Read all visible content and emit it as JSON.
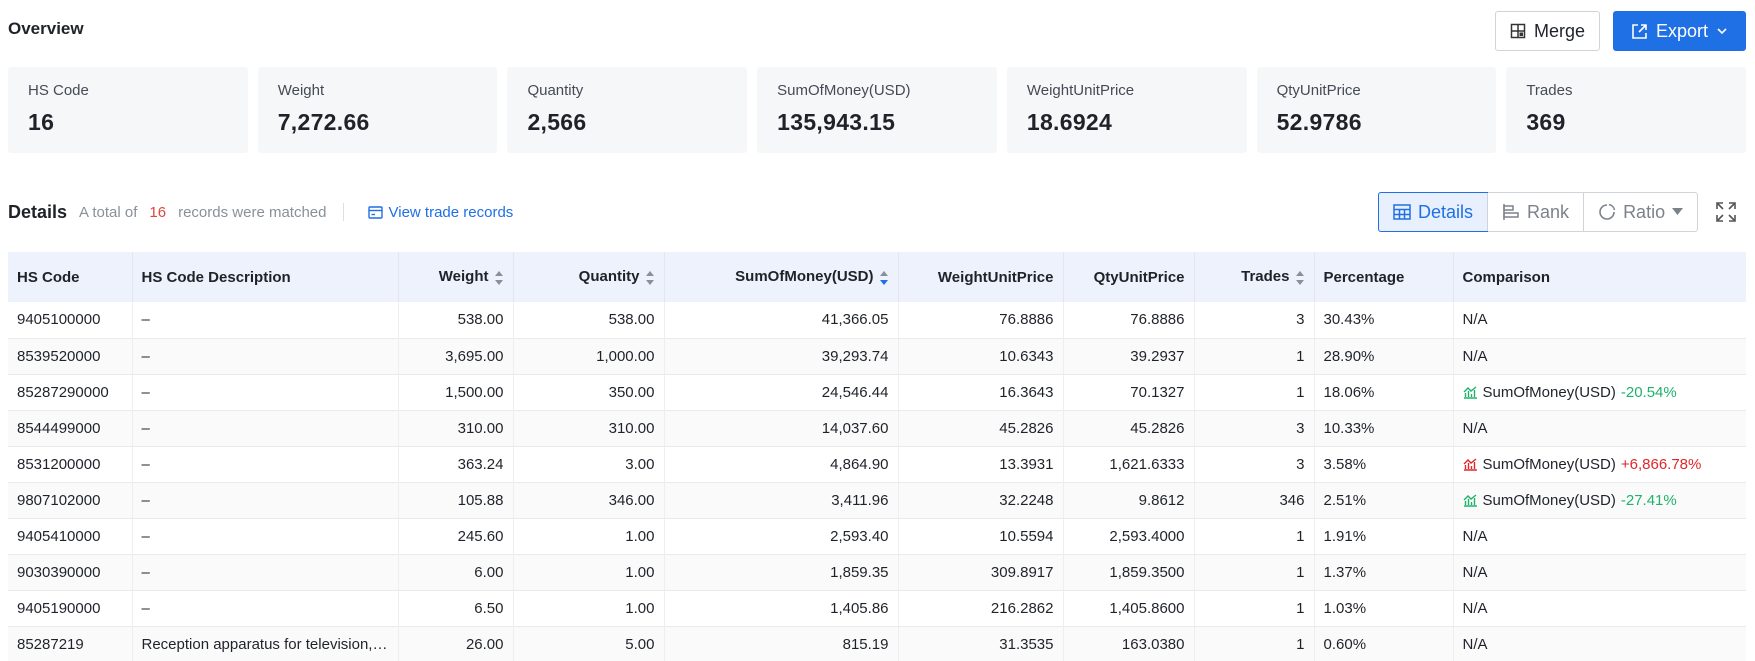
{
  "overview": {
    "title": "Overview"
  },
  "actions": {
    "merge_label": "Merge",
    "export_label": "Export"
  },
  "summary": [
    {
      "label": "HS Code",
      "value": "16"
    },
    {
      "label": "Weight",
      "value": "7,272.66"
    },
    {
      "label": "Quantity",
      "value": "2,566"
    },
    {
      "label": "SumOfMoney(USD)",
      "value": "135,943.15"
    },
    {
      "label": "WeightUnitPrice",
      "value": "18.6924"
    },
    {
      "label": "QtyUnitPrice",
      "value": "52.9786"
    },
    {
      "label": "Trades",
      "value": "369"
    }
  ],
  "details": {
    "title": "Details",
    "total_prefix": "A total of",
    "total_count": "16",
    "total_suffix": "records were matched",
    "view_link": "View trade records"
  },
  "views": {
    "details": "Details",
    "rank": "Rank",
    "ratio": "Ratio"
  },
  "colors": {
    "accent": "#1f6fe5",
    "down": "#20b26b",
    "up": "#e0262a"
  },
  "table": {
    "headers": {
      "hs_code": "HS Code",
      "description": "HS Code Description",
      "weight": "Weight",
      "quantity": "Quantity",
      "sum": "SumOfMoney(USD)",
      "weight_unit_price": "WeightUnitPrice",
      "qty_unit_price": "QtyUnitPrice",
      "trades": "Trades",
      "percentage": "Percentage",
      "comparison": "Comparison"
    },
    "rows": [
      {
        "hs": "9405100000",
        "desc": "–",
        "weight": "538.00",
        "qty": "538.00",
        "sum": "41,366.05",
        "wup": "76.8886",
        "qup": "76.8886",
        "trades": "3",
        "pct": "30.43%",
        "cmp": "N/A"
      },
      {
        "hs": "8539520000",
        "desc": "–",
        "weight": "3,695.00",
        "qty": "1,000.00",
        "sum": "39,293.74",
        "wup": "10.6343",
        "qup": "39.2937",
        "trades": "1",
        "pct": "28.90%",
        "cmp": "N/A"
      },
      {
        "hs": "85287290000",
        "desc": "–",
        "weight": "1,500.00",
        "qty": "350.00",
        "sum": "24,546.44",
        "wup": "16.3643",
        "qup": "70.1327",
        "trades": "1",
        "pct": "18.06%",
        "cmp_label": "SumOfMoney(USD)",
        "cmp_change": "-20.54%",
        "trend": "down"
      },
      {
        "hs": "8544499000",
        "desc": "–",
        "weight": "310.00",
        "qty": "310.00",
        "sum": "14,037.60",
        "wup": "45.2826",
        "qup": "45.2826",
        "trades": "3",
        "pct": "10.33%",
        "cmp": "N/A"
      },
      {
        "hs": "8531200000",
        "desc": "–",
        "weight": "363.24",
        "qty": "3.00",
        "sum": "4,864.90",
        "wup": "13.3931",
        "qup": "1,621.6333",
        "trades": "3",
        "pct": "3.58%",
        "cmp_label": "SumOfMoney(USD)",
        "cmp_change": "+6,866.78%",
        "trend": "up"
      },
      {
        "hs": "9807102000",
        "desc": "–",
        "weight": "105.88",
        "qty": "346.00",
        "sum": "3,411.96",
        "wup": "32.2248",
        "qup": "9.8612",
        "trades": "346",
        "pct": "2.51%",
        "cmp_label": "SumOfMoney(USD)",
        "cmp_change": "-27.41%",
        "trend": "down"
      },
      {
        "hs": "9405410000",
        "desc": "–",
        "weight": "245.60",
        "qty": "1.00",
        "sum": "2,593.40",
        "wup": "10.5594",
        "qup": "2,593.4000",
        "trades": "1",
        "pct": "1.91%",
        "cmp": "N/A"
      },
      {
        "hs": "9030390000",
        "desc": "–",
        "weight": "6.00",
        "qty": "1.00",
        "sum": "1,859.35",
        "wup": "309.8917",
        "qup": "1,859.3500",
        "trades": "1",
        "pct": "1.37%",
        "cmp": "N/A"
      },
      {
        "hs": "9405190000",
        "desc": "–",
        "weight": "6.50",
        "qty": "1.00",
        "sum": "1,405.86",
        "wup": "216.2862",
        "qup": "1,405.8600",
        "trades": "1",
        "pct": "1.03%",
        "cmp": "N/A"
      },
      {
        "hs": "85287219",
        "desc": "Reception apparatus for television, colour, with a screen",
        "weight": "26.00",
        "qty": "5.00",
        "sum": "815.19",
        "wup": "31.3535",
        "qup": "163.0380",
        "trades": "1",
        "pct": "0.60%",
        "cmp": "N/A"
      }
    ]
  }
}
